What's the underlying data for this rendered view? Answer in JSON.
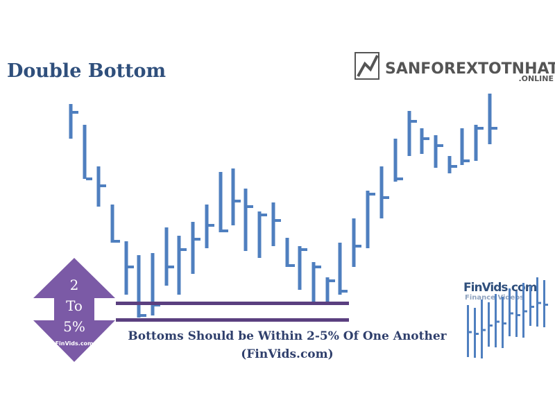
{
  "header": {
    "title": "Double Bottom"
  },
  "watermark": {
    "name": "SANFOREXTOTNHAT",
    "suffix": ".ONLINE"
  },
  "badge": {
    "line1": "2",
    "line2": "To",
    "line3": "5%",
    "source": "FinVids.com"
  },
  "caption": {
    "line1": "Bottoms Should be Within 2-5% Of One Another",
    "line2": "(FinVids.com)"
  },
  "logo": {
    "name": "FinVids.com",
    "tagline": "Finance Videos"
  }
}
